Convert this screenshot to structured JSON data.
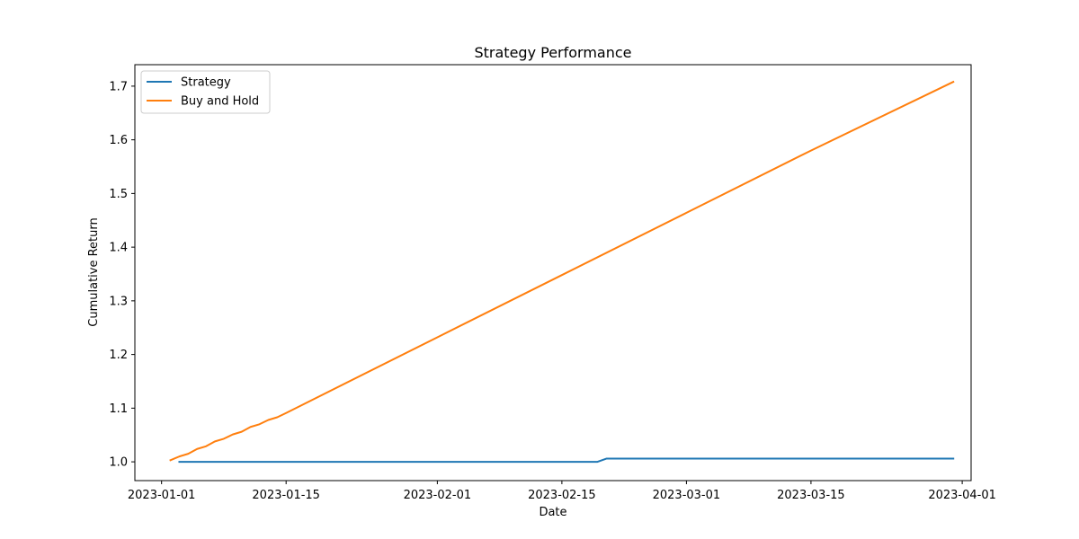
{
  "chart_data": {
    "type": "line",
    "title": "Strategy Performance",
    "xlabel": "Date",
    "ylabel": "Cumulative Return",
    "x_type": "date",
    "xlim": [
      "2022-12-29",
      "2023-04-02"
    ],
    "ylim": [
      0.965,
      1.74
    ],
    "x_ticks": [
      "2023-01-01",
      "2023-01-15",
      "2023-02-01",
      "2023-02-15",
      "2023-03-01",
      "2023-03-15",
      "2023-04-01"
    ],
    "y_ticks": [
      "1.0",
      "1.1",
      "1.2",
      "1.3",
      "1.4",
      "1.5",
      "1.6",
      "1.7"
    ],
    "grid": false,
    "legend_position": "top-left",
    "series": [
      {
        "name": "Strategy",
        "color": "#1f77b4",
        "x": [
          "2023-01-03",
          "2023-01-15",
          "2023-02-01",
          "2023-02-15",
          "2023-02-19",
          "2023-02-20",
          "2023-03-01",
          "2023-03-15",
          "2023-03-31"
        ],
        "y": [
          1.0,
          1.0,
          1.0,
          1.0,
          1.0,
          1.006,
          1.006,
          1.006,
          1.006
        ]
      },
      {
        "name": "Buy and Hold",
        "color": "#ff7f0e",
        "x": [
          "2023-01-02",
          "2023-01-03",
          "2023-01-04",
          "2023-01-05",
          "2023-01-06",
          "2023-01-07",
          "2023-01-08",
          "2023-01-09",
          "2023-01-10",
          "2023-01-11",
          "2023-01-12",
          "2023-01-13",
          "2023-01-14",
          "2023-01-15",
          "2023-02-01",
          "2023-02-15",
          "2023-03-01",
          "2023-03-15",
          "2023-03-31"
        ],
        "y": [
          1.003,
          1.01,
          1.015,
          1.024,
          1.029,
          1.038,
          1.043,
          1.051,
          1.056,
          1.065,
          1.07,
          1.078,
          1.083,
          1.091,
          1.232,
          1.348,
          1.464,
          1.58,
          1.708
        ]
      }
    ]
  }
}
